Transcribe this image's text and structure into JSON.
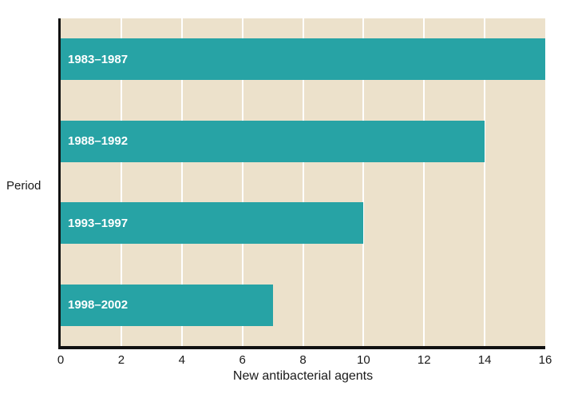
{
  "chart_data": {
    "type": "bar",
    "orientation": "horizontal",
    "categories": [
      "1983–1987",
      "1988–1992",
      "1993–1997",
      "1998–2002"
    ],
    "values": [
      16,
      14,
      10,
      7
    ],
    "title": "",
    "xlabel": "New antibacterial agents",
    "ylabel": "Period",
    "xlim": [
      0,
      16
    ],
    "xticks": [
      0,
      2,
      4,
      6,
      8,
      10,
      12,
      14,
      16
    ],
    "grid": "vertical gridlines at each x tick, drawn behind bars",
    "legend": "none",
    "colors": {
      "bar": "#27a3a5",
      "plot_background": "#ece1cb",
      "gridline": "#ffffff",
      "axis": "#111111",
      "bar_label": "#ffffff",
      "text": "#1a1a1a",
      "page_background": "#ffffff"
    }
  }
}
